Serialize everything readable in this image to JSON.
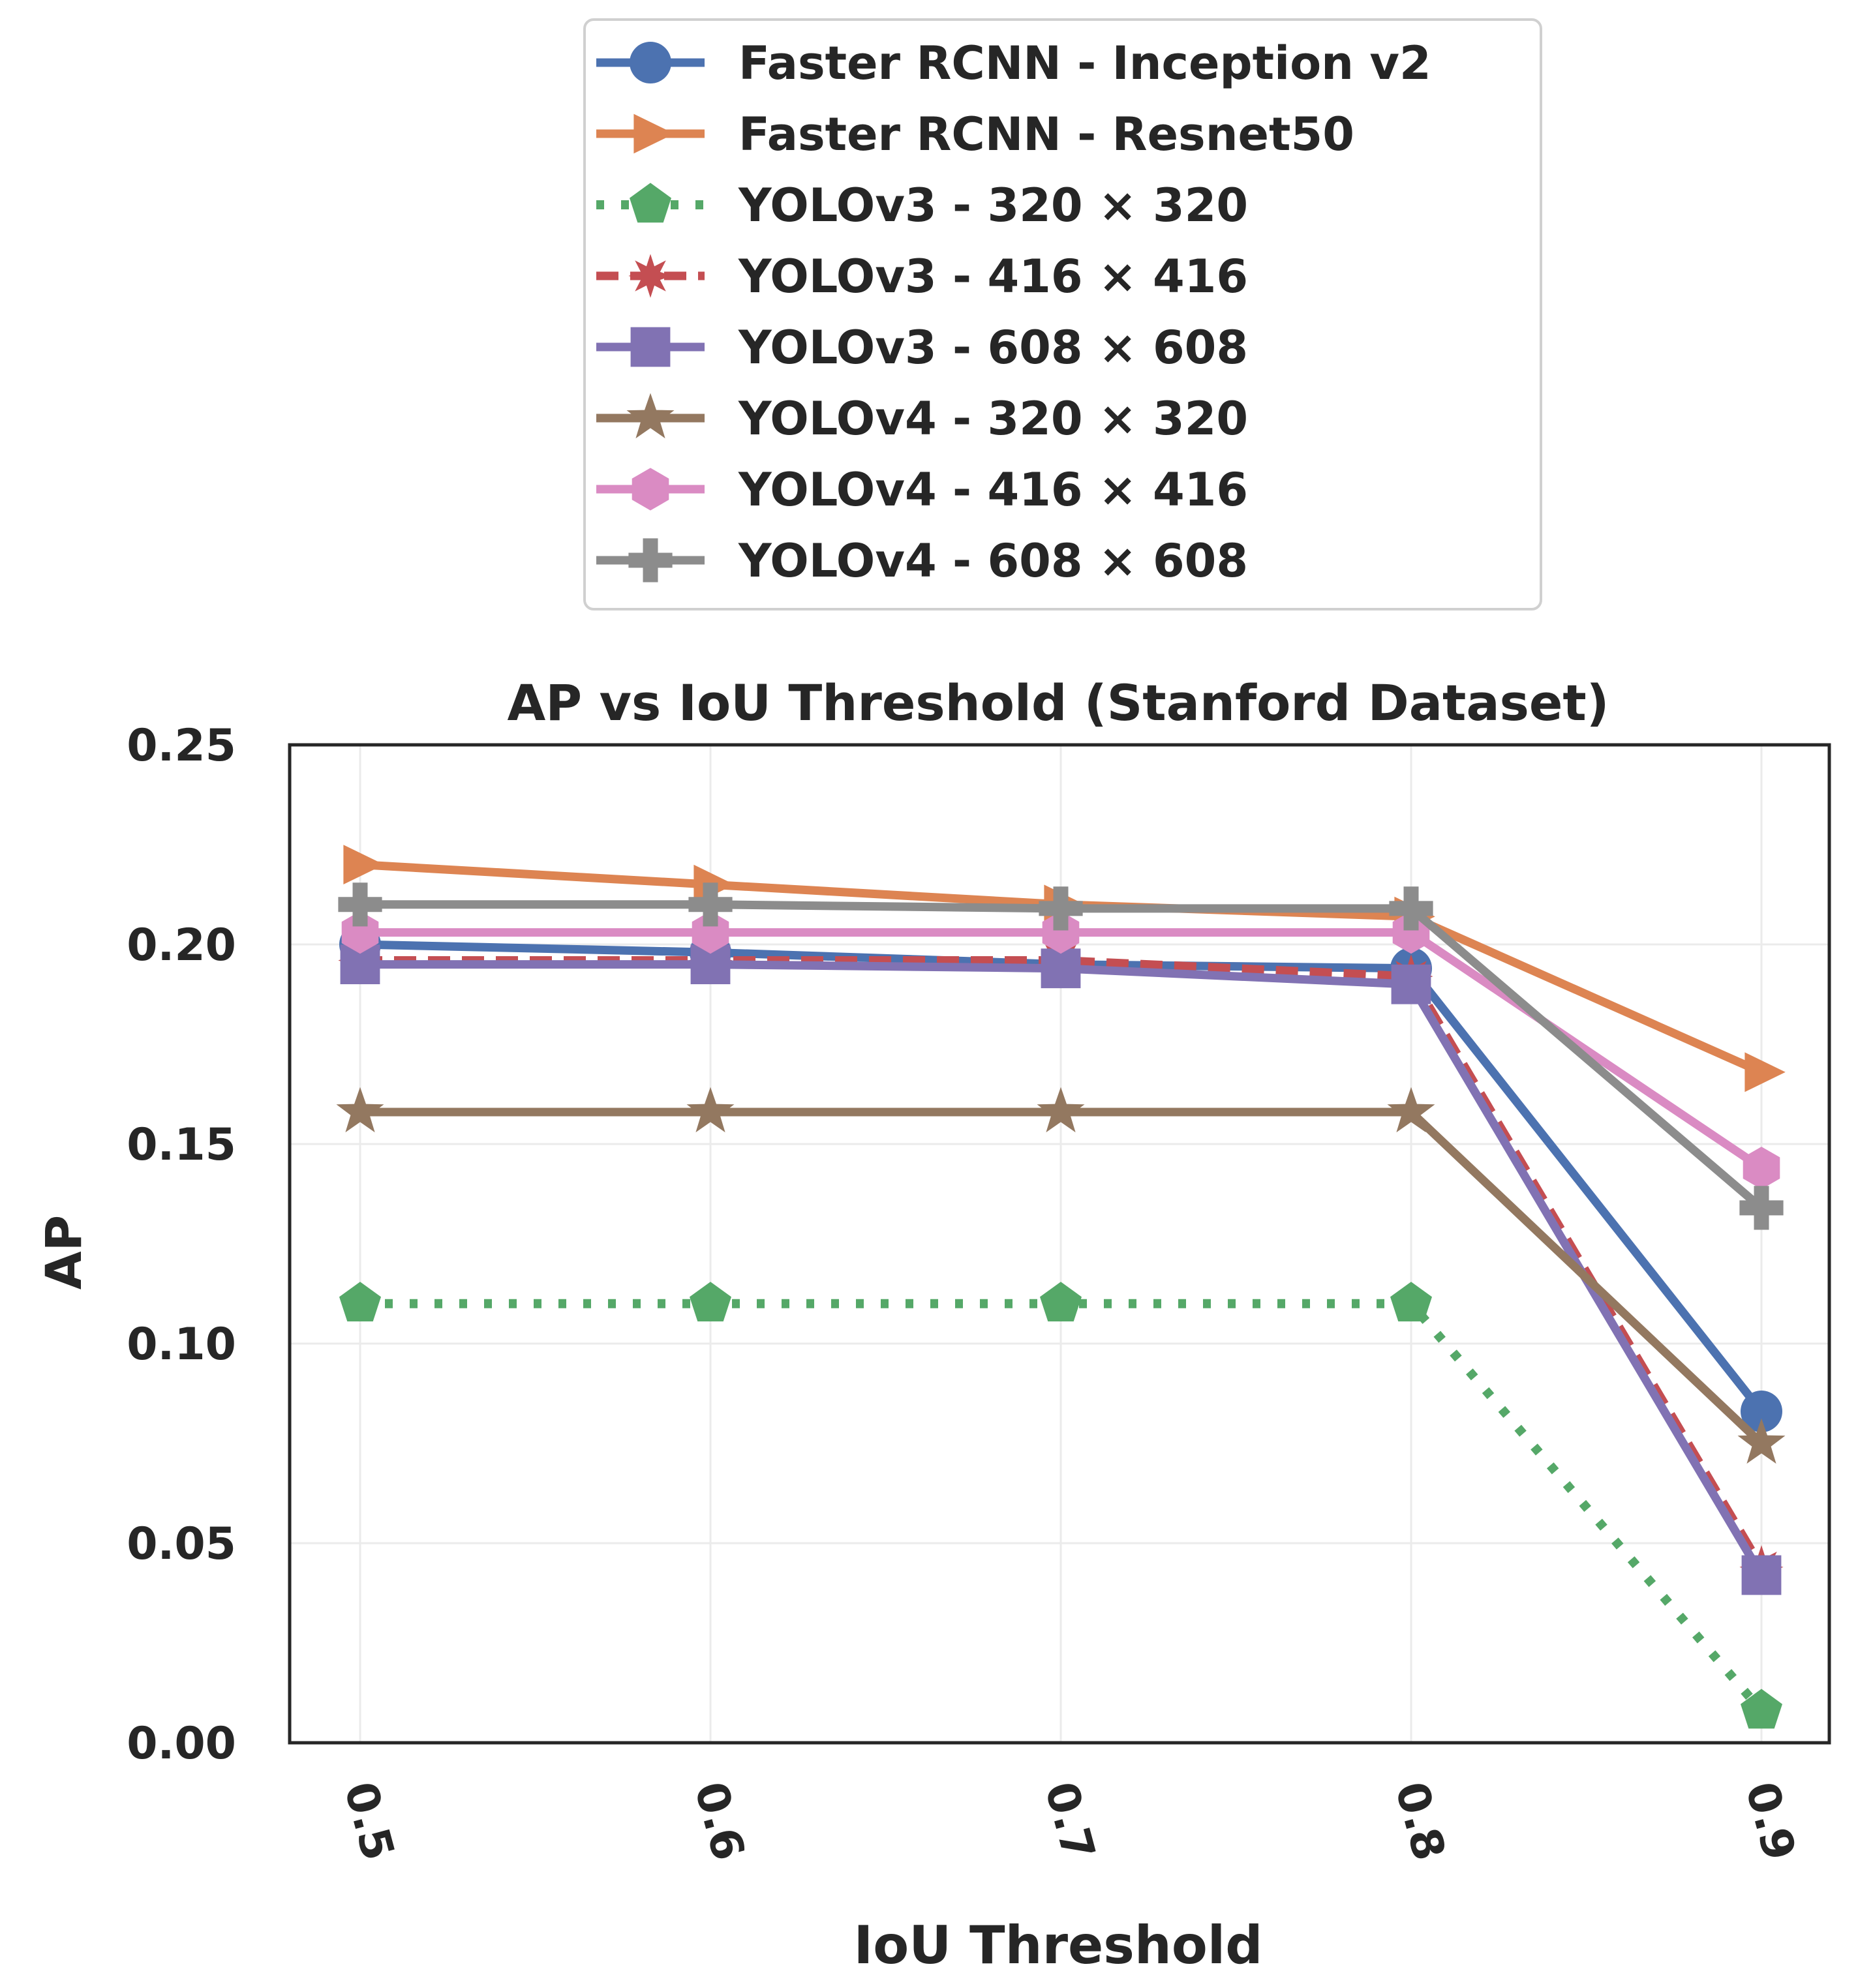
{
  "chart_data": {
    "type": "line",
    "title": "AP vs IoU Threshold (Stanford Dataset)",
    "xlabel": "IoU Threshold",
    "ylabel": "AP",
    "x": [
      0.5,
      0.6,
      0.7,
      0.8,
      0.9
    ],
    "x_tick_labels": [
      "0.5",
      "0.6",
      "0.7",
      "0.8",
      "0.9"
    ],
    "y_ticks": [
      0.0,
      0.05,
      0.1,
      0.15,
      0.2,
      0.25
    ],
    "y_tick_labels": [
      "0.00",
      "0.05",
      "0.10",
      "0.15",
      "0.20",
      "0.25"
    ],
    "ylim": [
      0.0,
      0.25
    ],
    "grid": true,
    "legend_position": "above-plot",
    "series": [
      {
        "name": "Faster RCNN - Inception v2",
        "color": "#4c72b0",
        "marker": "circle",
        "dash": "solid",
        "values": [
          0.2,
          0.198,
          0.195,
          0.194,
          0.083
        ]
      },
      {
        "name": "Faster RCNN - Resnet50",
        "color": "#dd8452",
        "marker": "triangle-right",
        "dash": "solid",
        "values": [
          0.22,
          0.215,
          0.21,
          0.207,
          0.168
        ]
      },
      {
        "name": "YOLOv3 - 320 × 320",
        "color": "#55a868",
        "marker": "pentagon",
        "dash": "dotted",
        "values": [
          0.11,
          0.11,
          0.11,
          0.11,
          0.008
        ]
      },
      {
        "name": "YOLOv3 - 416 × 416",
        "color": "#c44e52",
        "marker": "x-star",
        "dash": "dashed",
        "values": [
          0.196,
          0.196,
          0.196,
          0.192,
          0.044
        ]
      },
      {
        "name": "YOLOv3 - 608 × 608",
        "color": "#8172b3",
        "marker": "square",
        "dash": "solid",
        "values": [
          0.195,
          0.195,
          0.194,
          0.19,
          0.042
        ]
      },
      {
        "name": "YOLOv4 - 320 × 320",
        "color": "#937860",
        "marker": "star",
        "dash": "solid",
        "values": [
          0.158,
          0.158,
          0.158,
          0.158,
          0.075
        ]
      },
      {
        "name": "YOLOv4 - 416 × 416",
        "color": "#da8bc3",
        "marker": "hexagon",
        "dash": "solid",
        "values": [
          0.203,
          0.203,
          0.203,
          0.203,
          0.144
        ]
      },
      {
        "name": "YOLOv4 - 608 × 608",
        "color": "#8c8c8c",
        "marker": "plus",
        "dash": "solid",
        "values": [
          0.21,
          0.21,
          0.209,
          0.209,
          0.134
        ]
      }
    ]
  }
}
